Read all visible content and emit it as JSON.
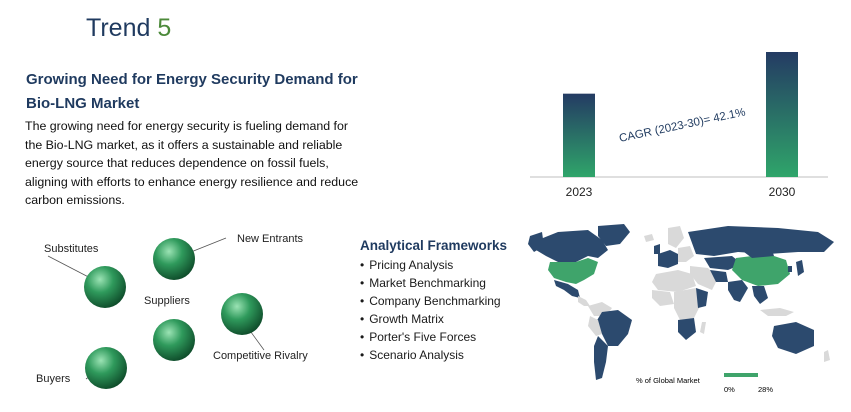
{
  "trend": {
    "word": "Trend",
    "number": "5"
  },
  "headline": "Growing Need for Energy Security Demand for Bio-LNG Market",
  "description": "The growing need for energy security is fueling demand for the Bio-LNG market, as it offers a sustainable and reliable energy source that reduces dependence on fossil fuels, aligning with efforts to enhance energy resilience and reduce carbon emissions.",
  "porter": {
    "substitutes": "Substitutes",
    "new_entrants": "New Entrants",
    "suppliers": "Suppliers",
    "competitive_rivalry": "Competitive Rivalry",
    "buyers": "Buyers",
    "sphere_color": "#2f9a5c"
  },
  "frameworks": {
    "title": "Analytical Frameworks",
    "items": [
      "Pricing Analysis",
      "Market Benchmarking",
      "Company Benchmarking",
      "Growth Matrix",
      "Porter's Five Forces",
      "Scenario Analysis"
    ]
  },
  "chart_data": {
    "type": "bar",
    "categories": [
      "2023",
      "2030"
    ],
    "values": [
      1,
      1.5
    ],
    "annotation": "CAGR (2023-30)= 42.1%",
    "colors": {
      "top": "#243b63",
      "bottom": "#2fa56a"
    }
  },
  "map": {
    "legend_title": "% of Global Market",
    "legend_min": "0%",
    "legend_max": "28%",
    "colors": {
      "high": "#2c4a6e",
      "accent": "#3fa46b",
      "low": "#d9d9d9"
    }
  }
}
